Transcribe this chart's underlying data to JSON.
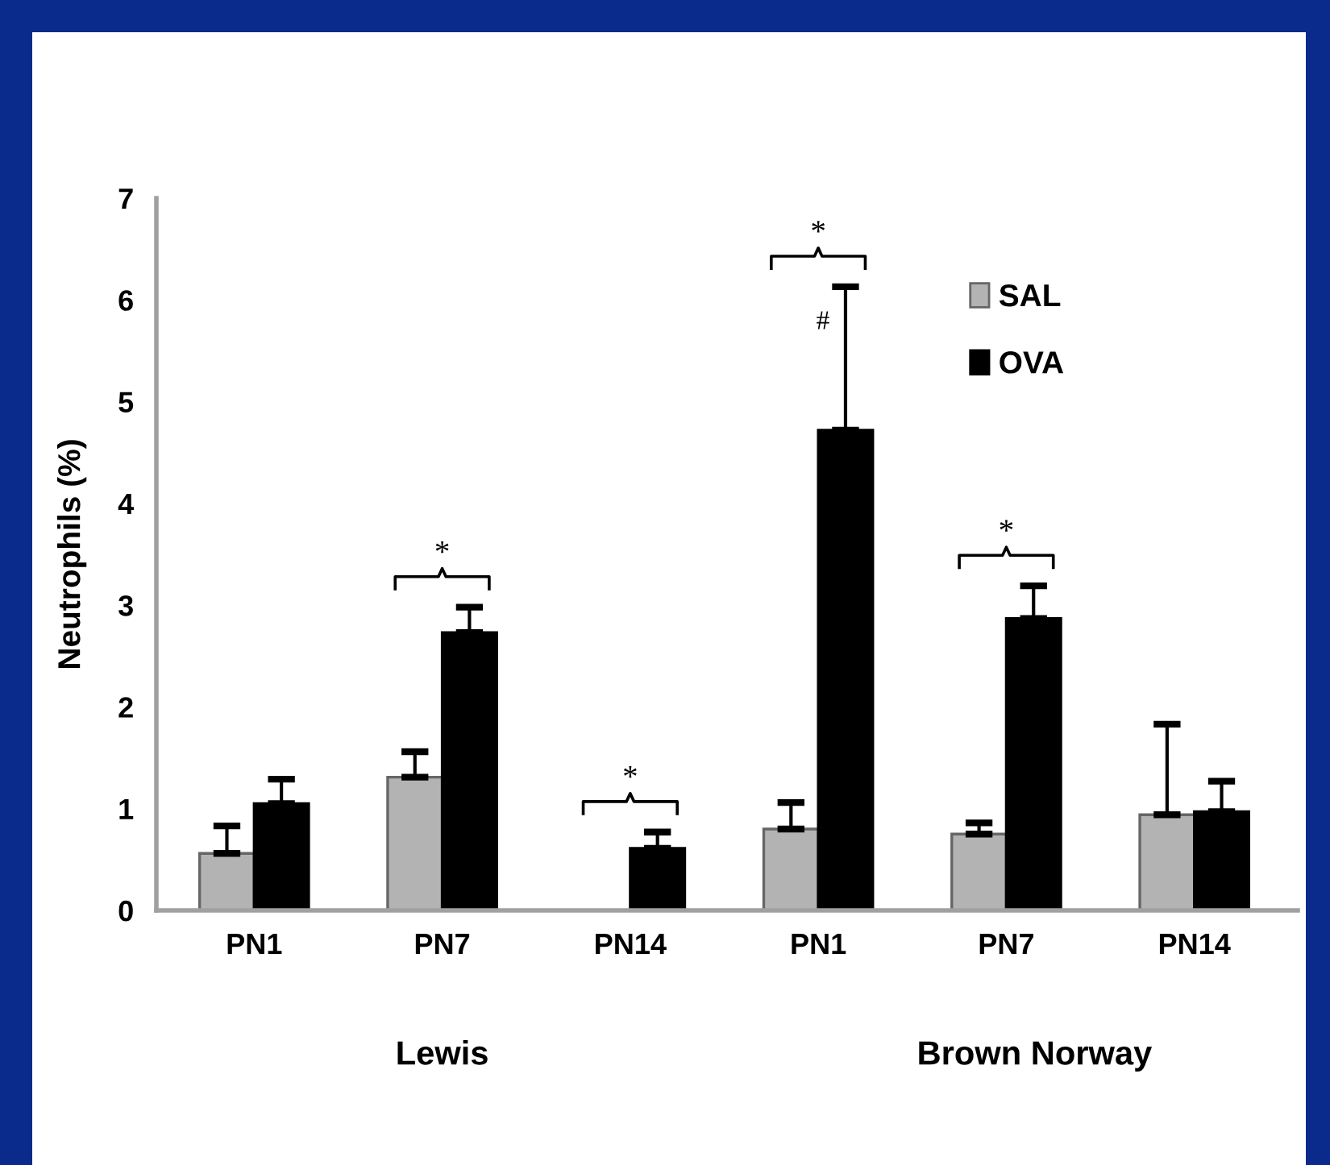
{
  "chart_data": {
    "type": "bar",
    "ylabel": "Neutrophils (%)",
    "categories": [
      "PN1",
      "PN7",
      "PN14",
      "PN1",
      "PN7",
      "PN14"
    ],
    "series": [
      {
        "name": "SAL",
        "color": "#b3b3b3",
        "values": [
          0.56,
          1.31,
          null,
          0.8,
          0.75,
          0.94
        ],
        "errors": [
          [
            0.56,
            0.83
          ],
          [
            1.31,
            1.56
          ],
          null,
          [
            0.8,
            1.06
          ],
          [
            0.75,
            0.86
          ],
          [
            0.94,
            1.83
          ]
        ]
      },
      {
        "name": "OVA",
        "color": "#000000",
        "values": [
          1.05,
          2.73,
          0.61,
          4.72,
          2.87,
          0.97
        ],
        "errors": [
          [
            1.05,
            1.29
          ],
          [
            2.73,
            2.98
          ],
          [
            0.61,
            0.77
          ],
          [
            4.72,
            6.13
          ],
          [
            2.87,
            3.19
          ],
          [
            0.97,
            1.27
          ]
        ]
      }
    ],
    "ylim": [
      0,
      7
    ],
    "yticks": [
      0,
      1,
      2,
      3,
      4,
      5,
      6,
      7
    ],
    "grid": false,
    "legend": "top right",
    "annotations": [
      "*",
      "*",
      "*",
      "#",
      "*",
      "Lewis",
      "Brown Norway"
    ]
  }
}
